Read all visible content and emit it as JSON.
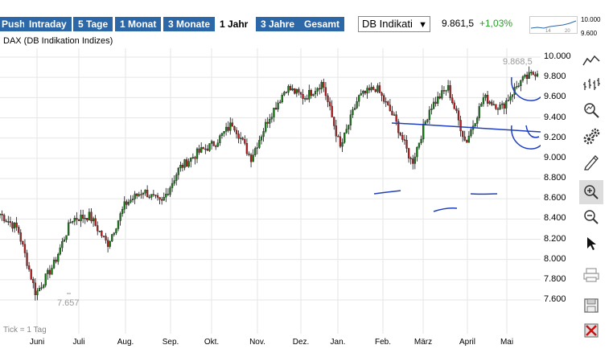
{
  "tabs": [
    {
      "label": "Push"
    },
    {
      "label": "Intraday"
    },
    {
      "label": "5 Tage"
    },
    {
      "label": "1 Monat"
    },
    {
      "label": "3 Monate"
    },
    {
      "label": "1 Jahr"
    },
    {
      "label": "3 Jahre"
    },
    {
      "label": "Gesamt"
    }
  ],
  "active_tab": "1 Jahr",
  "exchange_select": "DB Indikati",
  "quote": {
    "price": "9.861,5",
    "change": "+1,03%"
  },
  "mini_chart": {
    "y_labels": [
      "10.000",
      "9.600"
    ],
    "x_labels": [
      "14",
      "20"
    ]
  },
  "index_title": "DAX (DB Indikation Indizes)",
  "footer_note": "Tick = 1 Tag",
  "annotations": {
    "high": "9.868,5",
    "low": "7.657"
  },
  "toolbar": [
    {
      "name": "line-chart-tool",
      "icon": "line-chart-icon"
    },
    {
      "name": "ohlc-chart-tool",
      "icon": "ohlc-icon"
    },
    {
      "name": "indicator-tool",
      "icon": "magnifier-chart-icon"
    },
    {
      "name": "settings-tool",
      "icon": "gears-icon"
    },
    {
      "name": "draw-tool",
      "icon": "pencil-icon"
    },
    {
      "name": "zoom-in-tool",
      "icon": "zoom-in-icon"
    },
    {
      "name": "zoom-out-tool",
      "icon": "zoom-out-icon"
    },
    {
      "name": "pointer-tool",
      "icon": "cursor-icon"
    },
    {
      "name": "print-tool",
      "icon": "printer-icon"
    },
    {
      "name": "save-tool",
      "icon": "floppy-icon"
    },
    {
      "name": "delete-tool",
      "icon": "delete-icon"
    }
  ],
  "chart_data": {
    "type": "candlestick",
    "x_tick_labels": [
      "Juni",
      "Juli",
      "Aug.",
      "Sep.",
      "Okt.",
      "Nov.",
      "Dez.",
      "Jan.",
      "Feb.",
      "März",
      "April",
      "Mai"
    ],
    "y_tick_labels": [
      "10.000",
      "9.800",
      "9.600",
      "9.400",
      "9.200",
      "9.000",
      "8.800",
      "8.600",
      "8.400",
      "8.200",
      "8.000",
      "7.800",
      "7.600"
    ],
    "ylim": [
      7400,
      10100
    ],
    "series_close": [
      {
        "x": "Juni",
        "y": 8450
      },
      {
        "x": "Juni-mid",
        "y": 8300
      },
      {
        "x": "Juli-early",
        "y": 7660
      },
      {
        "x": "Juli-mid",
        "y": 7950
      },
      {
        "x": "Aug.",
        "y": 8400
      },
      {
        "x": "Aug.-mid",
        "y": 8430
      },
      {
        "x": "Sep.-early",
        "y": 8150
      },
      {
        "x": "Sep.-mid",
        "y": 8550
      },
      {
        "x": "Okt.",
        "y": 8680
      },
      {
        "x": "Okt.-mid",
        "y": 8550
      },
      {
        "x": "Okt.-late",
        "y": 8900
      },
      {
        "x": "Nov.",
        "y": 9050
      },
      {
        "x": "Nov.-mid",
        "y": 9150
      },
      {
        "x": "Dez.",
        "y": 9350
      },
      {
        "x": "Dez.-mid",
        "y": 9000
      },
      {
        "x": "Dez.-late",
        "y": 9400
      },
      {
        "x": "Jan.",
        "y": 9700
      },
      {
        "x": "Jan.-mid",
        "y": 9600
      },
      {
        "x": "Jan.-late",
        "y": 9750
      },
      {
        "x": "Feb.-early",
        "y": 9100
      },
      {
        "x": "Feb.-mid",
        "y": 9600
      },
      {
        "x": "Feb.-late",
        "y": 9700
      },
      {
        "x": "März-early",
        "y": 9400
      },
      {
        "x": "März-mid",
        "y": 8950
      },
      {
        "x": "März-late",
        "y": 9500
      },
      {
        "x": "April-early",
        "y": 9700
      },
      {
        "x": "April-mid",
        "y": 9150
      },
      {
        "x": "April-late",
        "y": 9600
      },
      {
        "x": "Mai-early",
        "y": 9500
      },
      {
        "x": "Mai-mid",
        "y": 9750
      },
      {
        "x": "Mai-late",
        "y": 9861.5
      }
    ]
  }
}
